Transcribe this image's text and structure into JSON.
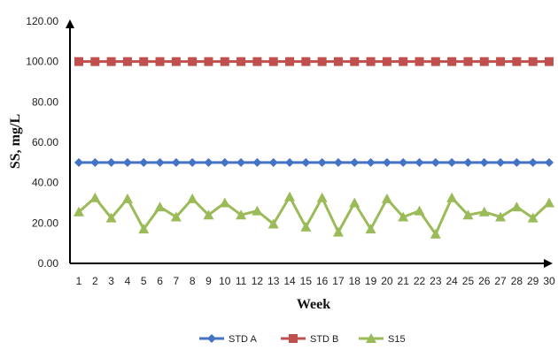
{
  "chart_data": {
    "type": "line",
    "title": "",
    "xlabel": "Week",
    "ylabel": "SS, mg/L",
    "ylim": [
      0,
      120
    ],
    "yticks": [
      "0.00",
      "20.00",
      "40.00",
      "60.00",
      "80.00",
      "100.00",
      "120.00"
    ],
    "x": [
      1,
      2,
      3,
      4,
      5,
      6,
      7,
      8,
      9,
      10,
      11,
      12,
      13,
      14,
      15,
      16,
      17,
      18,
      19,
      20,
      21,
      22,
      23,
      24,
      25,
      26,
      27,
      28,
      29,
      30
    ],
    "grid": false,
    "legend_position": "bottom",
    "series": [
      {
        "name": "STD A",
        "color": "#4472c4",
        "marker": "diamond",
        "values": [
          50,
          50,
          50,
          50,
          50,
          50,
          50,
          50,
          50,
          50,
          50,
          50,
          50,
          50,
          50,
          50,
          50,
          50,
          50,
          50,
          50,
          50,
          50,
          50,
          50,
          50,
          50,
          50,
          50,
          50
        ]
      },
      {
        "name": "STD B",
        "color": "#c0504d",
        "marker": "square",
        "values": [
          100,
          100,
          100,
          100,
          100,
          100,
          100,
          100,
          100,
          100,
          100,
          100,
          100,
          100,
          100,
          100,
          100,
          100,
          100,
          100,
          100,
          100,
          100,
          100,
          100,
          100,
          100,
          100,
          100,
          100
        ]
      },
      {
        "name": "S15",
        "color": "#9bbb59",
        "marker": "triangle",
        "values": [
          25.5,
          32.5,
          22.5,
          32,
          17,
          28,
          23,
          32,
          24,
          30,
          24,
          26,
          19.5,
          33,
          18,
          32.5,
          15.5,
          30,
          17,
          32,
          23,
          26,
          14.5,
          32.5,
          24,
          25.5,
          23,
          28,
          22.5,
          30
        ]
      }
    ]
  }
}
